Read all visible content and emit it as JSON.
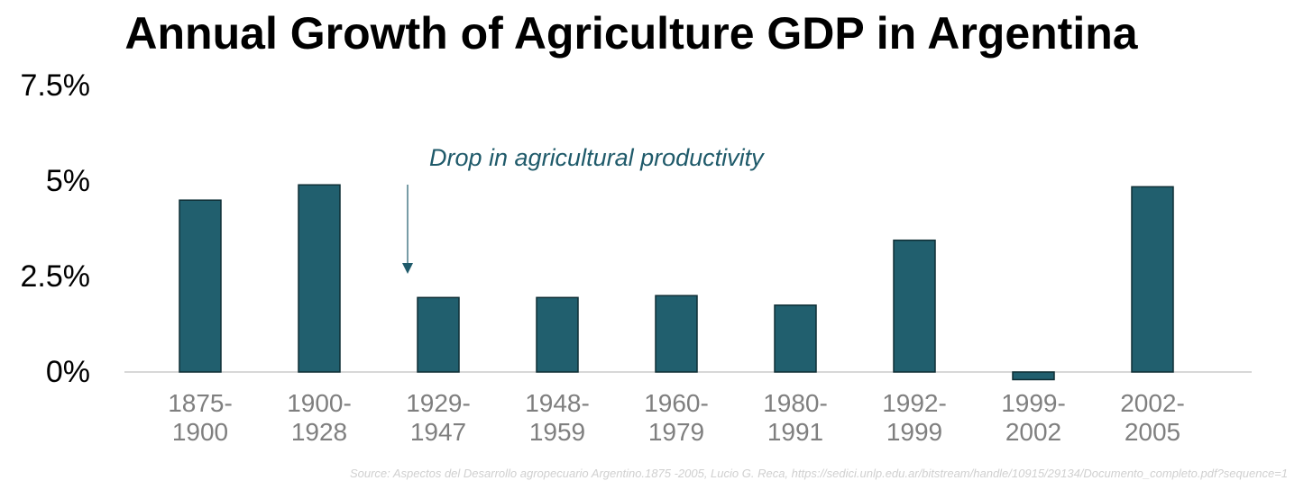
{
  "chart_data": {
    "type": "bar",
    "title": "Annual Growth of Agriculture GDP in Argentina",
    "categories": [
      [
        "1875-",
        "1900"
      ],
      [
        "1900-",
        "1928"
      ],
      [
        "1929-",
        "1947"
      ],
      [
        "1948-",
        "1959"
      ],
      [
        "1960-",
        "1979"
      ],
      [
        "1980-",
        "1991"
      ],
      [
        "1992-",
        "1999"
      ],
      [
        "1999-",
        "2002"
      ],
      [
        "2002-",
        "2005"
      ]
    ],
    "values": [
      4.5,
      4.9,
      1.95,
      1.95,
      2.0,
      1.75,
      3.45,
      -0.2,
      4.85
    ],
    "ylim": [
      0,
      7.5
    ],
    "yticks": [
      0,
      2.5,
      5,
      7.5
    ],
    "ytick_labels": [
      "0%",
      "2.5%",
      "5%",
      "7.5%"
    ],
    "xlabel": "",
    "ylabel": "",
    "grid": false,
    "annotation": {
      "text": "Drop in agricultural productivity",
      "target_category_index": 2
    },
    "source": "Source: Aspectos del Desarrollo agropecuario Argentino.1875 -2005, Lucio G. Reca, https://sedici.unlp.edu.ar/bitstream/handle/10915/29134/Documento_completo.pdf?sequence=1"
  },
  "colors": {
    "bar_fill": "#215f6e",
    "bar_stroke": "#0f2e35",
    "baseline": "#cccccc",
    "annotation": "#1f5a6a",
    "xlabel": "#7f7f7f"
  }
}
